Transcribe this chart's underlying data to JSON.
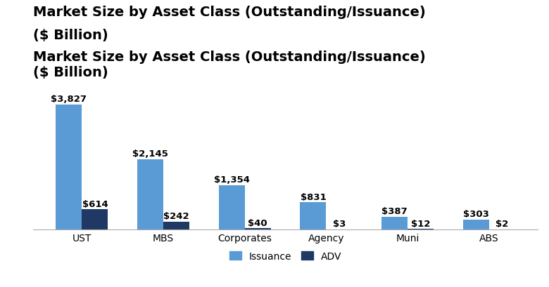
{
  "title_line1": "Market Size by Asset Class (Outstanding/Issuance)",
  "title_line2": "($ Billion)",
  "categories": [
    "UST",
    "MBS",
    "Corporates",
    "Agency",
    "Muni",
    "ABS"
  ],
  "issuance_values": [
    3827,
    2145,
    1354,
    831,
    387,
    303
  ],
  "adv_values": [
    614,
    242,
    40,
    3,
    12,
    2
  ],
  "issuance_labels": [
    "$3,827",
    "$2,145",
    "$1,354",
    "$831",
    "$387",
    "$303"
  ],
  "adv_labels": [
    "$614",
    "$242",
    "$40",
    "$3",
    "$12",
    "$2"
  ],
  "issuance_color": "#5B9BD5",
  "adv_color": "#1F3864",
  "background_color": "#FFFFFF",
  "bar_width": 0.32,
  "ylim": [
    0,
    4400
  ],
  "legend_issuance": "Issuance",
  "legend_adv": "ADV",
  "title_fontsize": 14,
  "label_fontsize": 9.5,
  "tick_fontsize": 10,
  "legend_fontsize": 10
}
